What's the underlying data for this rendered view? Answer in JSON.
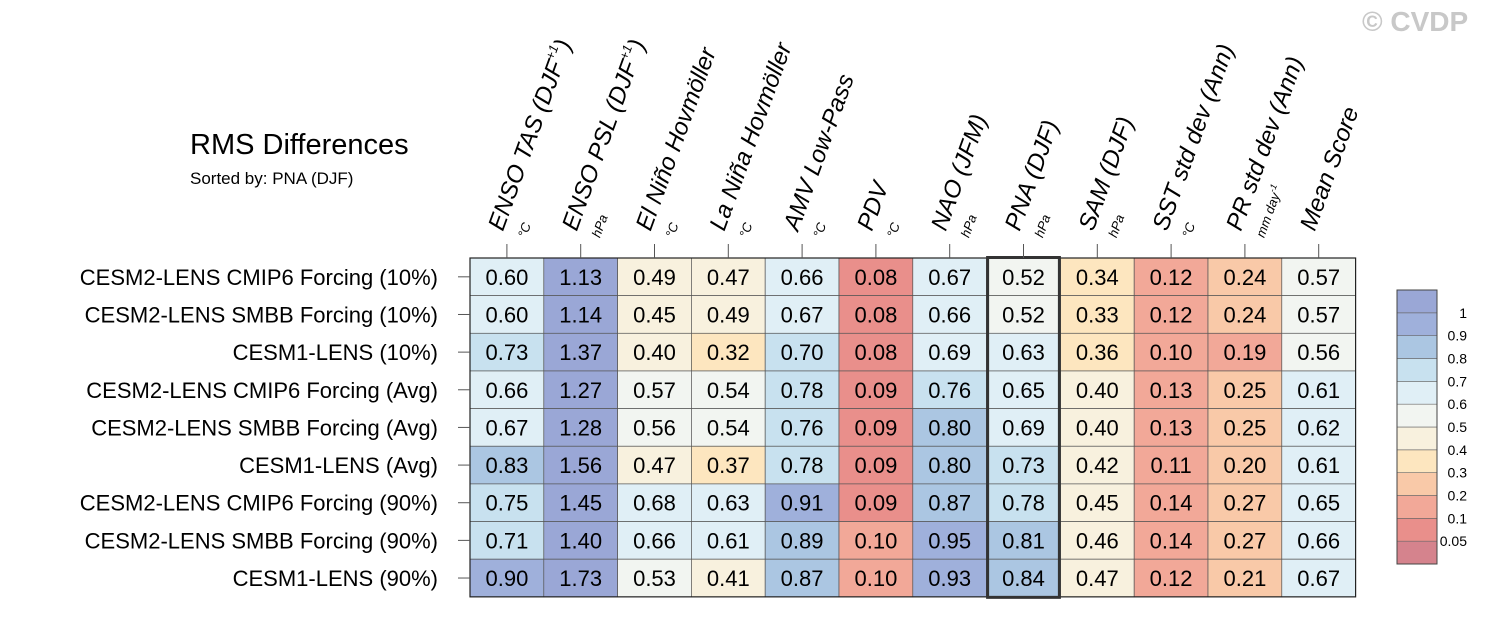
{
  "watermark": "© CVDP",
  "chart_data": {
    "type": "heatmap",
    "title": "RMS Differences",
    "subtitle": "Sorted by: PNA (DJF)",
    "columns": [
      {
        "label": "ENSO TAS (DJF",
        "sup": "+1",
        "close": ")",
        "unit": "°C"
      },
      {
        "label": "ENSO PSL (DJF",
        "sup": "+1",
        "close": ")",
        "unit": "hPa"
      },
      {
        "label": "El Niño Hovmöller",
        "sup": "",
        "close": "",
        "unit": "°C"
      },
      {
        "label": "La Niña Hovmöller",
        "sup": "",
        "close": "",
        "unit": "°C"
      },
      {
        "label": "AMV Low-Pass",
        "sup": "",
        "close": "",
        "unit": "°C"
      },
      {
        "label": "PDV",
        "sup": "",
        "close": "",
        "unit": "°C"
      },
      {
        "label": "NAO (JFM)",
        "sup": "",
        "close": "",
        "unit": "hPa"
      },
      {
        "label": "PNA (DJF)",
        "sup": "",
        "close": "",
        "unit": "hPa"
      },
      {
        "label": "SAM (DJF)",
        "sup": "",
        "close": "",
        "unit": "hPa"
      },
      {
        "label": "SST std dev (Ann)",
        "sup": "",
        "close": "",
        "unit": "°C"
      },
      {
        "label": "PR std dev (Ann)",
        "sup": "",
        "close": "",
        "unit": "mm day",
        "unit_sup": "-1"
      },
      {
        "label": "Mean Score",
        "sup": "",
        "close": "",
        "unit": ""
      }
    ],
    "rows": [
      "CESM2-LENS CMIP6 Forcing (10%)",
      "CESM2-LENS SMBB Forcing (10%)",
      "CESM1-LENS (10%)",
      "CESM2-LENS CMIP6 Forcing (Avg)",
      "CESM2-LENS SMBB Forcing (Avg)",
      "CESM1-LENS (Avg)",
      "CESM2-LENS CMIP6 Forcing (90%)",
      "CESM2-LENS SMBB Forcing (90%)",
      "CESM1-LENS (90%)"
    ],
    "values": [
      [
        0.6,
        1.13,
        0.49,
        0.47,
        0.66,
        0.08,
        0.67,
        0.52,
        0.34,
        0.12,
        0.24,
        0.57
      ],
      [
        0.6,
        1.14,
        0.45,
        0.49,
        0.67,
        0.08,
        0.66,
        0.52,
        0.33,
        0.12,
        0.24,
        0.57
      ],
      [
        0.73,
        1.37,
        0.4,
        0.32,
        0.7,
        0.08,
        0.69,
        0.63,
        0.36,
        0.1,
        0.19,
        0.56
      ],
      [
        0.66,
        1.27,
        0.57,
        0.54,
        0.78,
        0.09,
        0.76,
        0.65,
        0.4,
        0.13,
        0.25,
        0.61
      ],
      [
        0.67,
        1.28,
        0.56,
        0.54,
        0.76,
        0.09,
        0.8,
        0.69,
        0.4,
        0.13,
        0.25,
        0.62
      ],
      [
        0.83,
        1.56,
        0.47,
        0.37,
        0.78,
        0.09,
        0.8,
        0.73,
        0.42,
        0.11,
        0.2,
        0.61
      ],
      [
        0.75,
        1.45,
        0.68,
        0.63,
        0.91,
        0.09,
        0.87,
        0.78,
        0.45,
        0.14,
        0.27,
        0.65
      ],
      [
        0.71,
        1.4,
        0.66,
        0.61,
        0.89,
        0.1,
        0.95,
        0.81,
        0.46,
        0.14,
        0.27,
        0.66
      ],
      [
        0.9,
        1.73,
        0.53,
        0.41,
        0.87,
        0.1,
        0.93,
        0.84,
        0.47,
        0.12,
        0.21,
        0.67
      ]
    ],
    "highlighted_column": "PNA (DJF)",
    "colorbar": {
      "levels": [
        0.05,
        0.1,
        0.2,
        0.3,
        0.4,
        0.5,
        0.6,
        0.7,
        0.8,
        0.9,
        1
      ],
      "tick_labels": [
        "0.05",
        "0.1",
        "0.2",
        "0.3",
        "0.4",
        "0.5",
        "0.6",
        "0.7",
        "0.8",
        "0.9",
        "1"
      ],
      "colors": [
        "#d5838d",
        "#e98f8b",
        "#f2a898",
        "#f9c9a8",
        "#fde6bf",
        "#f8f1de",
        "#f2f5f1",
        "#e0eff6",
        "#c8e1ef",
        "#abc6e2",
        "#9fb0db",
        "#9aa7d6"
      ]
    }
  }
}
